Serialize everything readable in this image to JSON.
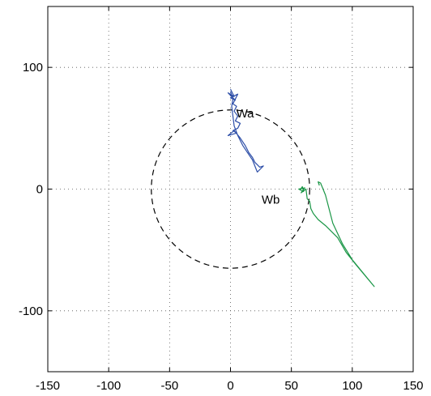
{
  "chart_data": {
    "type": "line",
    "title": "",
    "xlabel": "",
    "ylabel": "",
    "xlim": [
      -150,
      150
    ],
    "ylim": [
      -150,
      150
    ],
    "xticks": [
      -150,
      -100,
      -50,
      0,
      50,
      100,
      150
    ],
    "yticks": [
      -100,
      0,
      100
    ],
    "grid": true,
    "circle": {
      "cx": 0,
      "cy": 0,
      "r": 65,
      "style": "dashed",
      "color": "#000000"
    },
    "series": [
      {
        "color": "#2e4fa8",
        "points": [
          [
            0,
            82
          ],
          [
            3,
            76
          ],
          [
            -2,
            79
          ],
          [
            4,
            73
          ],
          [
            0,
            75
          ],
          [
            6,
            78
          ],
          [
            2,
            70
          ],
          [
            5,
            68
          ],
          [
            3,
            64
          ],
          [
            6,
            60
          ],
          [
            4,
            56
          ],
          [
            8,
            54
          ],
          [
            6,
            50
          ],
          [
            2,
            48
          ],
          [
            5,
            46
          ],
          [
            -2,
            44
          ],
          [
            3,
            48
          ],
          [
            8,
            42
          ],
          [
            12,
            36
          ],
          [
            15,
            30
          ],
          [
            18,
            26
          ],
          [
            20,
            22
          ],
          [
            24,
            18
          ],
          [
            27,
            19
          ],
          [
            22,
            14
          ],
          [
            18,
            24
          ],
          [
            14,
            30
          ],
          [
            10,
            36
          ],
          [
            6,
            44
          ],
          [
            3,
            52
          ],
          [
            2,
            60
          ],
          [
            1,
            68
          ],
          [
            2,
            74
          ],
          [
            0,
            80
          ]
        ]
      },
      {
        "color": "#1a9646",
        "points": [
          [
            57,
            -1
          ],
          [
            59,
            2
          ],
          [
            60,
            -2
          ],
          [
            56,
            0
          ],
          [
            61,
            1
          ],
          [
            58,
            -3
          ],
          [
            62,
            0
          ],
          [
            63,
            -8
          ],
          [
            65,
            -10
          ],
          [
            66,
            -16
          ],
          [
            68,
            -20
          ],
          [
            72,
            -25
          ],
          [
            78,
            -30
          ],
          [
            88,
            -40
          ],
          [
            95,
            -52
          ],
          [
            103,
            -62
          ],
          [
            118,
            -80
          ],
          [
            100,
            -58
          ],
          [
            92,
            -45
          ],
          [
            84,
            -28
          ],
          [
            78,
            -5
          ],
          [
            74,
            5
          ],
          [
            72,
            6
          ],
          [
            73,
            3
          ]
        ]
      }
    ],
    "annotations": [
      {
        "text": "Wa",
        "x": 12,
        "y": 59
      },
      {
        "text": "Wb",
        "x": 33,
        "y": -12
      }
    ]
  }
}
